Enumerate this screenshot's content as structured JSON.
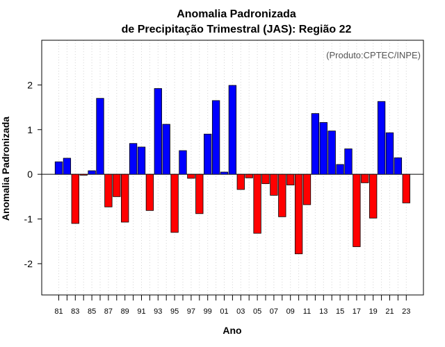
{
  "chart_data": {
    "type": "bar",
    "title": "Anomalia Padronizada",
    "subtitle": "de Precipitação Trimestral (JAS): Região 22",
    "xlabel": "Ano",
    "ylabel": "Anomalia Padronizada",
    "credit": "(Produto:CPTEC/INPE)",
    "ylim": [
      -2.7,
      3.0
    ],
    "yticks": [
      -2,
      -1,
      0,
      1,
      2
    ],
    "grid": "vertical dotted",
    "positive_color": "#0000ff",
    "negative_color": "#ff0000",
    "categories": [
      "81",
      "82",
      "83",
      "84",
      "85",
      "86",
      "87",
      "88",
      "89",
      "90",
      "91",
      "92",
      "93",
      "94",
      "95",
      "96",
      "97",
      "98",
      "99",
      "00",
      "01",
      "02",
      "03",
      "04",
      "05",
      "06",
      "07",
      "08",
      "09",
      "10",
      "11",
      "12",
      "13",
      "14",
      "15",
      "16",
      "17",
      "18",
      "19",
      "20",
      "21",
      "22",
      "23"
    ],
    "tick_labels": [
      "81",
      "83",
      "85",
      "87",
      "89",
      "91",
      "93",
      "95",
      "97",
      "99",
      "01",
      "03",
      "05",
      "07",
      "09",
      "11",
      "13",
      "15",
      "17",
      "19",
      "21",
      "23"
    ],
    "values": [
      0.28,
      0.36,
      -1.1,
      -0.02,
      0.08,
      1.7,
      -0.73,
      -0.5,
      -1.07,
      0.69,
      0.61,
      -0.81,
      1.92,
      1.12,
      -1.3,
      0.53,
      -0.09,
      -0.88,
      0.9,
      1.65,
      0.05,
      1.99,
      -0.34,
      -0.08,
      -1.32,
      -0.21,
      -0.47,
      -0.95,
      -0.24,
      -1.78,
      -0.68,
      1.36,
      1.16,
      0.97,
      0.22,
      0.57,
      -1.62,
      -0.19,
      -0.98,
      1.63,
      0.93,
      0.37,
      -0.64
    ]
  }
}
